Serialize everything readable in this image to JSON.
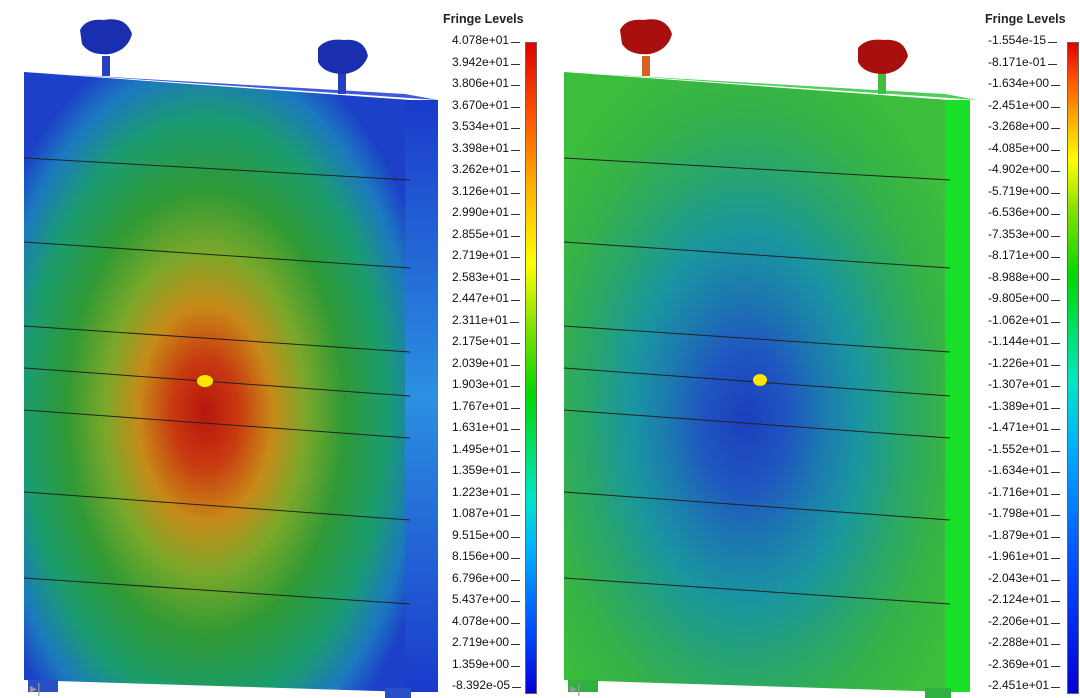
{
  "left": {
    "legend_title": "Fringe Levels",
    "levels": [
      "4.078e+01",
      "3.942e+01",
      "3.806e+01",
      "3.670e+01",
      "3.534e+01",
      "3.398e+01",
      "3.262e+01",
      "3.126e+01",
      "2.990e+01",
      "2.855e+01",
      "2.719e+01",
      "2.583e+01",
      "2.447e+01",
      "2.311e+01",
      "2.175e+01",
      "2.039e+01",
      "1.903e+01",
      "1.767e+01",
      "1.631e+01",
      "1.495e+01",
      "1.359e+01",
      "1.223e+01",
      "1.087e+01",
      "9.515e+00",
      "8.156e+00",
      "6.796e+00",
      "5.437e+00",
      "4.078e+00",
      "2.719e+00",
      "1.359e+00",
      "-8.392e-05"
    ],
    "center_color": "#b01a0e",
    "edge_color": "#1a3fd0",
    "mid_color": "#1e9a2c",
    "accent_colors": [
      "#ffe000",
      "#1c2fb8"
    ]
  },
  "right": {
    "legend_title": "Fringe Levels",
    "levels": [
      "-1.554e-15",
      "-8.171e-01",
      "-1.634e+00",
      "-2.451e+00",
      "-3.268e+00",
      "-4.085e+00",
      "-4.902e+00",
      "-5.719e+00",
      "-6.536e+00",
      "-7.353e+00",
      "-8.171e+00",
      "-8.988e+00",
      "-9.805e+00",
      "-1.062e+01",
      "-1.144e+01",
      "-1.226e+01",
      "-1.307e+01",
      "-1.389e+01",
      "-1.471e+01",
      "-1.552e+01",
      "-1.634e+01",
      "-1.716e+01",
      "-1.798e+01",
      "-1.879e+01",
      "-1.961e+01",
      "-2.043e+01",
      "-2.124e+01",
      "-2.206e+01",
      "-2.288e+01",
      "-2.369e+01",
      "-2.451e+01"
    ],
    "center_color": "#1840b8",
    "edge_color": "#2ab84a",
    "mid_color": "#1a8fa0",
    "accent_colors": [
      "#ffe000",
      "#b01010"
    ]
  },
  "nav_icon": "play-end-icon"
}
